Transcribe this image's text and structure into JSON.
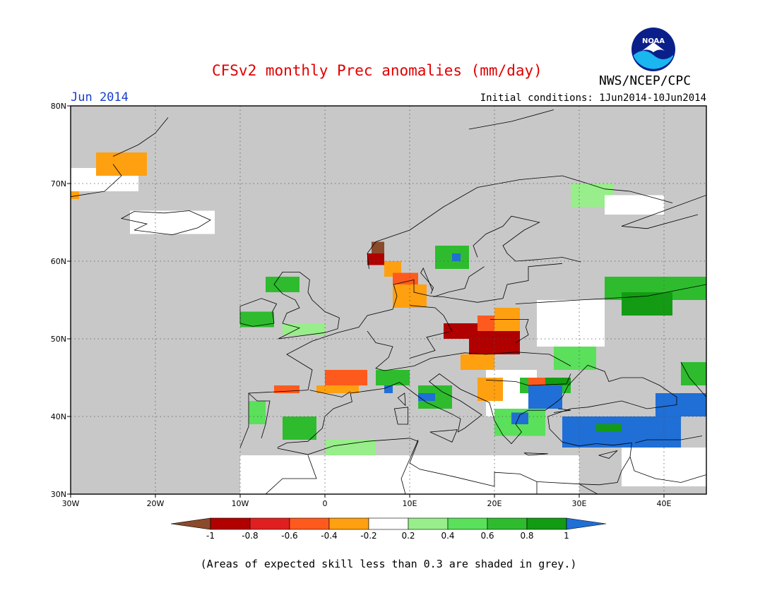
{
  "header": {
    "title": "CFSv2 monthly Prec anomalies (mm/day)",
    "agency": "NWS/NCEP/CPC",
    "month": "Jun 2014",
    "initial_conditions": "Initial conditions: 1Jun2014-10Jun2014",
    "logo_text": "NOAA"
  },
  "footer": {
    "note": "(Areas of expected skill less than 0.3 are shaded in grey.)"
  },
  "map": {
    "lon_range": [
      -30,
      45
    ],
    "lat_range": [
      30,
      80
    ],
    "lon_ticks": [
      {
        "value": -30,
        "label": "30W"
      },
      {
        "value": -20,
        "label": "20W"
      },
      {
        "value": -10,
        "label": "10W"
      },
      {
        "value": 0,
        "label": "0"
      },
      {
        "value": 10,
        "label": "10E"
      },
      {
        "value": 20,
        "label": "20E"
      },
      {
        "value": 30,
        "label": "30E"
      },
      {
        "value": 40,
        "label": "40E"
      }
    ],
    "lat_ticks": [
      {
        "value": 30,
        "label": "30N"
      },
      {
        "value": 40,
        "label": "40N"
      },
      {
        "value": 50,
        "label": "50N"
      },
      {
        "value": 60,
        "label": "60N"
      },
      {
        "value": 70,
        "label": "70N"
      },
      {
        "value": 80,
        "label": "80N"
      }
    ],
    "grid": "dotted",
    "colors": {
      "low_skill": "#c8c8c8",
      "neutral": "#ffffff",
      "below_-1": "#8b4a2a",
      "-1_-0.8": "#b00000",
      "-0.8_-0.6": "#e02020",
      "-0.6_-0.4": "#ff5a1e",
      "-0.4_-0.2": "#ffa010",
      "0.2_0.4": "#98ee8a",
      "0.4_0.6": "#5ae05a",
      "0.6_0.8": "#2ebc2e",
      "0.8_1": "#139b13",
      "above_1": "#1f6fd6"
    }
  },
  "colorbar": {
    "labels": [
      "-1",
      "-0.8",
      "-0.6",
      "-0.4",
      "-0.2",
      "0.2",
      "0.4",
      "0.6",
      "0.8",
      "1"
    ],
    "segments": [
      {
        "range": "below -1",
        "color": "#8b4a2a"
      },
      {
        "range": "-1 to -0.8",
        "color": "#b00000"
      },
      {
        "range": "-0.8 to -0.6",
        "color": "#e02020"
      },
      {
        "range": "-0.6 to -0.4",
        "color": "#ff5a1e"
      },
      {
        "range": "-0.4 to -0.2",
        "color": "#ffa010"
      },
      {
        "range": "-0.2 to 0.2",
        "color": "#ffffff"
      },
      {
        "range": "0.2 to 0.4",
        "color": "#98ee8a"
      },
      {
        "range": "0.4 to 0.6",
        "color": "#5ae05a"
      },
      {
        "range": "0.6 to 0.8",
        "color": "#2ebc2e"
      },
      {
        "range": "0.8 to 1",
        "color": "#139b13"
      },
      {
        "range": "above 1",
        "color": "#1f6fd6"
      }
    ]
  },
  "anomaly_regions": [
    {
      "name": "iceland-region",
      "lon": [
        -23,
        -13
      ],
      "lat": [
        63.5,
        66.5
      ],
      "class": "neutral"
    },
    {
      "name": "greenland-se",
      "lon": [
        -30,
        -22
      ],
      "lat": [
        69,
        72
      ],
      "class": "neutral"
    },
    {
      "name": "greenland-orange",
      "lon": [
        -27,
        -21
      ],
      "lat": [
        71,
        74
      ],
      "class": "-0.4_-0.2"
    },
    {
      "name": "greenland-orange-s",
      "lon": [
        -30,
        -29
      ],
      "lat": [
        68,
        69
      ],
      "class": "-0.4_-0.2"
    },
    {
      "name": "ireland-green",
      "lon": [
        -10,
        -6
      ],
      "lat": [
        51.5,
        53.5
      ],
      "class": "0.6_0.8"
    },
    {
      "name": "scotland-green",
      "lon": [
        -7,
        -3
      ],
      "lat": [
        56,
        58
      ],
      "class": "0.6_0.8"
    },
    {
      "name": "england-lightgreen",
      "lon": [
        -5,
        0
      ],
      "lat": [
        50.5,
        52
      ],
      "class": "0.2_0.4"
    },
    {
      "name": "norway-brown",
      "lon": [
        5.5,
        7
      ],
      "lat": [
        61,
        62.5
      ],
      "class": "below_-1"
    },
    {
      "name": "norway-darkred",
      "lon": [
        5,
        7
      ],
      "lat": [
        59.5,
        61
      ],
      "class": "-1_-0.8"
    },
    {
      "name": "norway-orange",
      "lon": [
        7,
        9
      ],
      "lat": [
        58,
        60
      ],
      "class": "-0.4_-0.2"
    },
    {
      "name": "sweden-green",
      "lon": [
        13,
        17
      ],
      "lat": [
        59,
        62
      ],
      "class": "0.6_0.8"
    },
    {
      "name": "sweden-blue",
      "lon": [
        15,
        16
      ],
      "lat": [
        60,
        61
      ],
      "class": "above_1"
    },
    {
      "name": "denmark-orange",
      "lon": [
        8,
        12
      ],
      "lat": [
        54,
        57
      ],
      "class": "-0.4_-0.2"
    },
    {
      "name": "denmark-red",
      "lon": [
        8,
        11
      ],
      "lat": [
        57,
        58.5
      ],
      "class": "-0.6_-0.4"
    },
    {
      "name": "finland-green",
      "lon": [
        29,
        34
      ],
      "lat": [
        67,
        70
      ],
      "class": "0.2_0.4"
    },
    {
      "name": "kola-white",
      "lon": [
        33,
        40
      ],
      "lat": [
        66,
        68.5
      ],
      "class": "neutral"
    },
    {
      "name": "russia-green-row",
      "lon": [
        33,
        45
      ],
      "lat": [
        55,
        58
      ],
      "class": "0.6_0.8"
    },
    {
      "name": "russia-green-block",
      "lon": [
        35,
        41
      ],
      "lat": [
        53,
        56
      ],
      "class": "0.8_1"
    },
    {
      "name": "russia-white",
      "lon": [
        25,
        33
      ],
      "lat": [
        49,
        55
      ],
      "class": "neutral"
    },
    {
      "name": "poland-darkred",
      "lon": [
        14,
        18
      ],
      "lat": [
        50,
        52
      ],
      "class": "-1_-0.8"
    },
    {
      "name": "czech-darkred",
      "lon": [
        17,
        23
      ],
      "lat": [
        48,
        51
      ],
      "class": "-1_-0.8"
    },
    {
      "name": "slovakia-red",
      "lon": [
        18,
        22
      ],
      "lat": [
        51,
        53
      ],
      "class": "-0.6_-0.4"
    },
    {
      "name": "hungary-orange",
      "lon": [
        20,
        23
      ],
      "lat": [
        51,
        54
      ],
      "class": "-0.4_-0.2"
    },
    {
      "name": "austria-orange",
      "lon": [
        16,
        20
      ],
      "lat": [
        46,
        48
      ],
      "class": "-0.4_-0.2"
    },
    {
      "name": "balkans-white",
      "lon": [
        19,
        25
      ],
      "lat": [
        40,
        46
      ],
      "class": "neutral"
    },
    {
      "name": "balkans-orange",
      "lon": [
        18,
        21
      ],
      "lat": [
        42,
        45
      ],
      "class": "-0.4_-0.2"
    },
    {
      "name": "romania-green",
      "lon": [
        23,
        29
      ],
      "lat": [
        43,
        45
      ],
      "class": "0.6_0.8"
    },
    {
      "name": "romania-darkgreen",
      "lon": [
        25,
        29
      ],
      "lat": [
        44,
        45
      ],
      "class": "0.8_1"
    },
    {
      "name": "romania-red",
      "lon": [
        24,
        26
      ],
      "lat": [
        44,
        45
      ],
      "class": "-0.6_-0.4"
    },
    {
      "name": "bulgaria-blue",
      "lon": [
        24,
        28
      ],
      "lat": [
        41,
        44
      ],
      "class": "above_1"
    },
    {
      "name": "ukraine-green",
      "lon": [
        27,
        32
      ],
      "lat": [
        46,
        49
      ],
      "class": "0.4_0.6"
    },
    {
      "name": "greece-green",
      "lon": [
        20,
        26
      ],
      "lat": [
        37.5,
        41
      ],
      "class": "0.4_0.6"
    },
    {
      "name": "greece-blue",
      "lon": [
        22,
        24
      ],
      "lat": [
        39,
        40.5
      ],
      "class": "above_1"
    },
    {
      "name": "turkey-blue",
      "lon": [
        28,
        42
      ],
      "lat": [
        36,
        40
      ],
      "class": "above_1"
    },
    {
      "name": "turkey-green",
      "lon": [
        32,
        35
      ],
      "lat": [
        38,
        39
      ],
      "class": "0.8_1"
    },
    {
      "name": "caucasus-blue",
      "lon": [
        39,
        45
      ],
      "lat": [
        40,
        43
      ],
      "class": "above_1"
    },
    {
      "name": "caucasus-green",
      "lon": [
        42,
        45
      ],
      "lat": [
        44,
        47
      ],
      "class": "0.6_0.8"
    },
    {
      "name": "italy-green",
      "lon": [
        11,
        15
      ],
      "lat": [
        41,
        44
      ],
      "class": "0.6_0.8"
    },
    {
      "name": "italy-blue",
      "lon": [
        11,
        13
      ],
      "lat": [
        42,
        43
      ],
      "class": "above_1"
    },
    {
      "name": "alps-green",
      "lon": [
        6,
        10
      ],
      "lat": [
        44,
        46
      ],
      "class": "0.6_0.8"
    },
    {
      "name": "alps-blue",
      "lon": [
        7,
        8
      ],
      "lat": [
        43,
        44
      ],
      "class": "above_1"
    },
    {
      "name": "france-red",
      "lon": [
        0,
        5
      ],
      "lat": [
        44,
        46
      ],
      "class": "-0.6_-0.4"
    },
    {
      "name": "france-orange",
      "lon": [
        -1,
        4
      ],
      "lat": [
        43,
        44
      ],
      "class": "-0.4_-0.2"
    },
    {
      "name": "spain-red",
      "lon": [
        -6,
        -3
      ],
      "lat": [
        43,
        44
      ],
      "class": "-0.6_-0.4"
    },
    {
      "name": "spain-green",
      "lon": [
        -5,
        -1
      ],
      "lat": [
        37,
        40
      ],
      "class": "0.6_0.8"
    },
    {
      "name": "portugal-green",
      "lon": [
        -9,
        -7
      ],
      "lat": [
        39,
        42
      ],
      "class": "0.4_0.6"
    },
    {
      "name": "northafrica-green",
      "lon": [
        0,
        6
      ],
      "lat": [
        35,
        37
      ],
      "class": "0.2_0.4"
    },
    {
      "name": "morocco-green",
      "lon": [
        -6,
        -4
      ],
      "lat": [
        33,
        35
      ],
      "class": "0.2_0.4"
    },
    {
      "name": "sahara-white",
      "lon": [
        -10,
        30
      ],
      "lat": [
        30,
        35
      ],
      "class": "neutral"
    },
    {
      "name": "mideast-white",
      "lon": [
        35,
        45
      ],
      "lat": [
        31,
        36
      ],
      "class": "neutral"
    }
  ]
}
